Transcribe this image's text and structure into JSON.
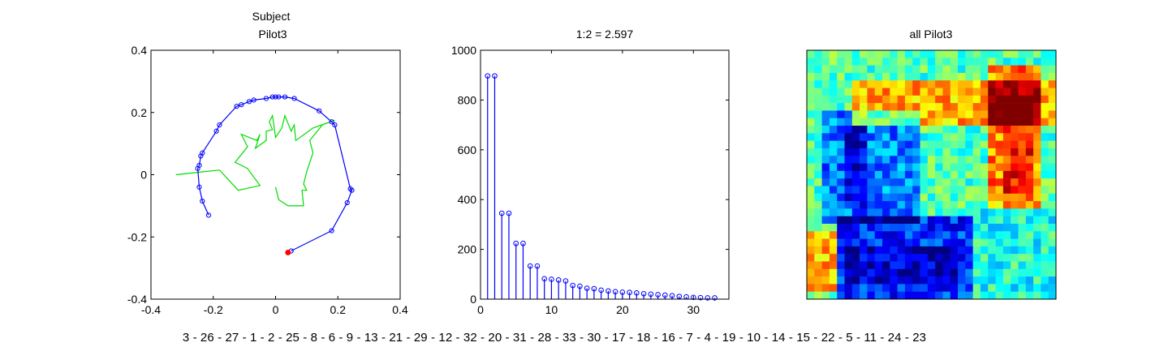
{
  "chart_data": [
    {
      "type": "line",
      "title_lines": [
        "Subject",
        "Pilot3"
      ],
      "xlim": [
        -0.4,
        0.4
      ],
      "ylim": [
        -0.4,
        0.4
      ],
      "xticks": [
        "-0.4",
        "-0.2",
        "0",
        "0.2",
        "0.4"
      ],
      "yticks": [
        "0.4",
        "0.2",
        "0",
        "-0.2",
        "-0.4"
      ],
      "series": [
        {
          "color": "#0000ff",
          "marker": "circle",
          "points": [
            [
              0.05,
              -0.245
            ],
            [
              0.18,
              -0.18
            ],
            [
              0.23,
              -0.09
            ],
            [
              0.245,
              -0.05
            ],
            [
              0.24,
              -0.045
            ],
            [
              0.19,
              0.16
            ],
            [
              0.18,
              0.17
            ],
            [
              0.14,
              0.205
            ],
            [
              0.06,
              0.245
            ],
            [
              0.03,
              0.25
            ],
            [
              0.01,
              0.25
            ],
            [
              0.0,
              0.25
            ],
            [
              -0.01,
              0.25
            ],
            [
              -0.03,
              0.245
            ],
            [
              -0.07,
              0.24
            ],
            [
              -0.085,
              0.235
            ],
            [
              -0.11,
              0.225
            ],
            [
              -0.125,
              0.22
            ],
            [
              -0.18,
              0.16
            ],
            [
              -0.19,
              0.14
            ],
            [
              -0.235,
              0.07
            ],
            [
              -0.24,
              0.06
            ],
            [
              -0.245,
              0.03
            ],
            [
              -0.25,
              0.02
            ],
            [
              -0.245,
              -0.04
            ],
            [
              -0.235,
              -0.085
            ],
            [
              -0.215,
              -0.13
            ]
          ]
        },
        {
          "color": "#00dd00",
          "marker": "none",
          "points": [
            [
              -0.32,
              0.0
            ],
            [
              -0.18,
              0.015
            ],
            [
              -0.12,
              -0.05
            ],
            [
              -0.05,
              -0.035
            ],
            [
              -0.09,
              0.02
            ],
            [
              -0.13,
              0.04
            ],
            [
              -0.09,
              0.09
            ],
            [
              -0.11,
              0.13
            ],
            [
              -0.06,
              0.11
            ],
            [
              -0.05,
              0.13
            ],
            [
              -0.065,
              0.085
            ],
            [
              -0.03,
              0.11
            ],
            [
              -0.03,
              0.14
            ],
            [
              -0.01,
              0.145
            ],
            [
              -0.02,
              0.17
            ],
            [
              -0.01,
              0.19
            ],
            [
              0.0,
              0.12
            ],
            [
              0.02,
              0.15
            ],
            [
              0.03,
              0.19
            ],
            [
              0.05,
              0.14
            ],
            [
              0.06,
              0.16
            ],
            [
              0.065,
              0.11
            ],
            [
              0.12,
              0.15
            ],
            [
              0.19,
              0.175
            ],
            [
              0.15,
              0.16
            ],
            [
              0.11,
              0.11
            ],
            [
              0.12,
              0.07
            ],
            [
              0.1,
              0.01
            ],
            [
              0.09,
              -0.03
            ],
            [
              0.1,
              -0.05
            ],
            [
              0.085,
              -0.05
            ],
            [
              0.09,
              -0.1
            ],
            [
              0.04,
              -0.1
            ],
            [
              0.01,
              -0.08
            ],
            [
              0.0,
              -0.04
            ],
            [
              0.01,
              -0.08
            ]
          ]
        }
      ],
      "highlight_point": {
        "x": 0.04,
        "y": -0.25,
        "color": "#ff0000"
      }
    },
    {
      "type": "stem",
      "title": "1:2 = 2.597",
      "xlim": [
        0,
        35
      ],
      "ylim": [
        0,
        1000
      ],
      "xticks": [
        "0",
        "10",
        "20",
        "30"
      ],
      "yticks": [
        "1000",
        "800",
        "600",
        "400",
        "200",
        "0"
      ],
      "x": [
        1,
        2,
        3,
        4,
        5,
        6,
        7,
        8,
        9,
        10,
        11,
        12,
        13,
        14,
        15,
        16,
        17,
        18,
        19,
        20,
        21,
        22,
        23,
        24,
        25,
        26,
        27,
        28,
        29,
        30,
        31,
        32,
        33
      ],
      "values": [
        897,
        897,
        345,
        345,
        224,
        224,
        133,
        133,
        82,
        80,
        77,
        73,
        55,
        52,
        44,
        42,
        36,
        33,
        30,
        28,
        27,
        25,
        22,
        20,
        18,
        16,
        14,
        11,
        9,
        7,
        6,
        5,
        5
      ],
      "color": "#0000ff"
    },
    {
      "type": "heatmap",
      "title": "all Pilot3",
      "size": 33,
      "colormap": "jet"
    }
  ],
  "subject_order": "3 - 26 - 27 - 1 - 2 - 25 - 8 - 6 - 9 - 13 - 21 - 29 - 12 - 32 - 20 - 31 - 28 - 33 - 30 - 17 - 18 - 16 - 7 - 4 - 19 - 10 - 14 - 15 - 22 - 5 - 11 - 24 - 23"
}
